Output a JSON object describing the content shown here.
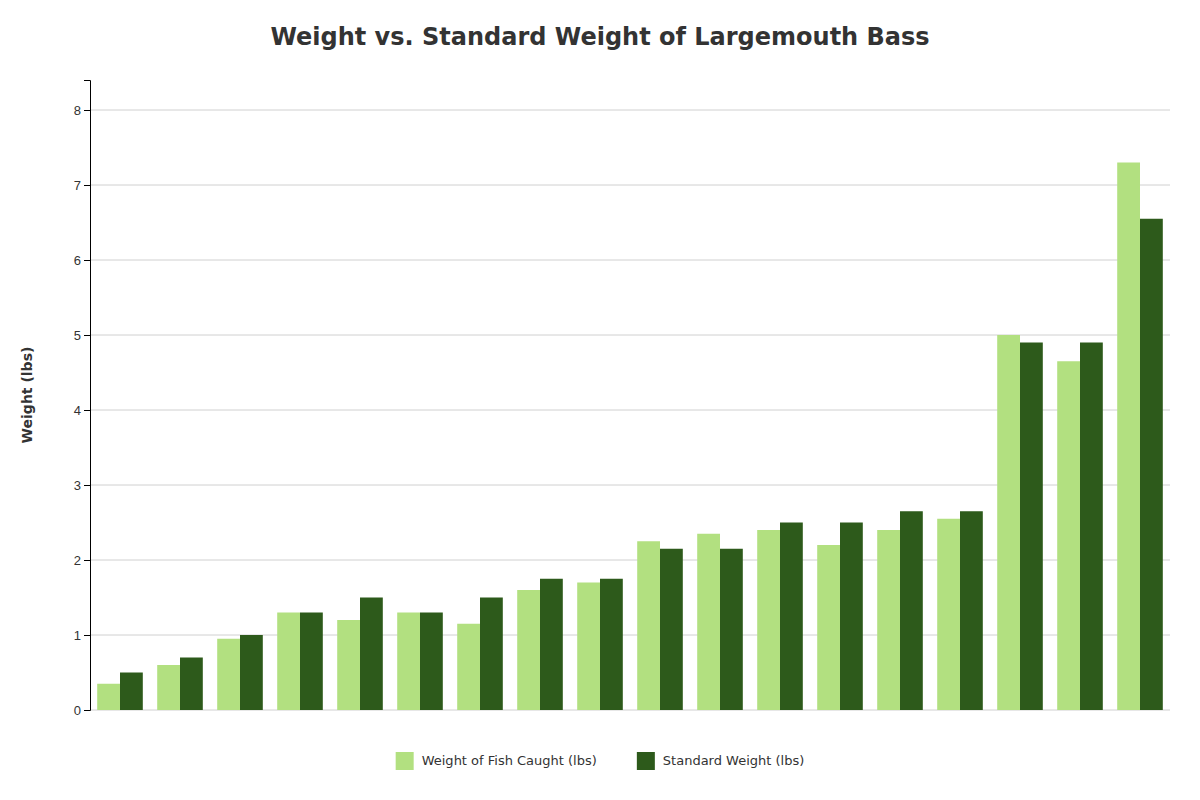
{
  "chart_data": {
    "type": "bar",
    "title": "Weight vs. Standard Weight of Largemouth Bass",
    "ylabel": "Weight (lbs)",
    "categories": [
      null,
      null,
      null,
      null,
      null,
      null,
      null,
      null,
      null,
      null,
      null,
      null,
      null,
      null,
      null,
      null,
      null,
      null
    ],
    "series": [
      {
        "name": "Weight of Fish Caught (lbs)",
        "color": "#b2e080",
        "values": [
          0.35,
          0.6,
          0.95,
          1.3,
          1.2,
          1.3,
          1.15,
          1.6,
          1.7,
          2.25,
          2.35,
          2.4,
          2.2,
          2.4,
          2.55,
          5.0,
          4.65,
          7.3
        ]
      },
      {
        "name": "Standard Weight (lbs)",
        "color": "#2d5a1b",
        "values": [
          0.5,
          0.7,
          1.0,
          1.3,
          1.5,
          1.3,
          1.5,
          1.75,
          1.75,
          2.15,
          2.15,
          2.5,
          2.5,
          2.65,
          2.65,
          4.9,
          4.9,
          6.55
        ]
      }
    ],
    "ylim": [
      0,
      8.4
    ],
    "yticks": [
      0,
      1,
      2,
      3,
      4,
      5,
      6,
      7,
      8
    ],
    "grid": true,
    "legend": "bottom",
    "tick_labels": "y"
  }
}
